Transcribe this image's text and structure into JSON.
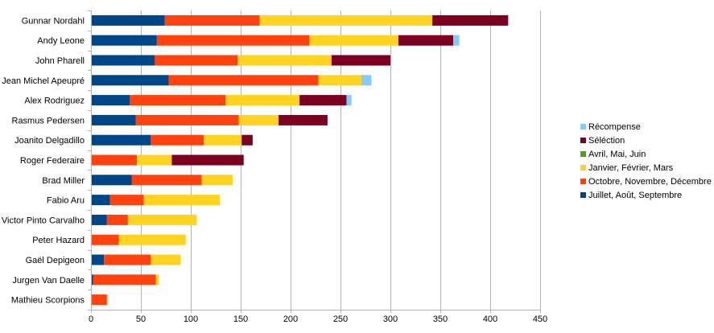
{
  "chart_data": {
    "type": "bar",
    "orientation": "horizontal",
    "stacked": true,
    "title": "",
    "xlabel": "",
    "ylabel": "",
    "xlim": [
      0,
      450
    ],
    "x_ticks": [
      0,
      50,
      100,
      150,
      200,
      250,
      300,
      350,
      400,
      450
    ],
    "grid": "vertical",
    "legend_position": "right",
    "categories": [
      "Gunnar Nordahl",
      "Andy Leone",
      "John Pharell",
      "Jean Michel Apeupré",
      "Alex Rodriguez",
      "Rasmus Pedersen",
      "Joanito Delgadillo",
      "Roger Federaire",
      "Brad Miller",
      "Fabio Aru",
      "Victor Pinto Carvalho",
      "Peter Hazard",
      "Gaël Depigeon",
      "Jurgen Van Daelle",
      "Mathieu Scorpions"
    ],
    "series": [
      {
        "name": "Juillet, Août, Septembre",
        "color": "#004586",
        "values": [
          74,
          66,
          64,
          78,
          39,
          45,
          60,
          0,
          41,
          19,
          16,
          0,
          13,
          2,
          0
        ]
      },
      {
        "name": "Octobre, Novembre, Décembre",
        "color": "#ff420e",
        "values": [
          95,
          153,
          83,
          150,
          96,
          103,
          53,
          46,
          70,
          34,
          21,
          28,
          47,
          63,
          16
        ]
      },
      {
        "name": "Janvier, Février, Mars",
        "color": "#ffd320",
        "values": [
          173,
          89,
          94,
          43,
          74,
          40,
          38,
          35,
          31,
          76,
          69,
          67,
          30,
          3,
          1
        ]
      },
      {
        "name": "Avril, Mai, Juin",
        "color": "#579d1c",
        "values": [
          0,
          0,
          0,
          0,
          0,
          0,
          0,
          0,
          0,
          0,
          0,
          0,
          0,
          0,
          0
        ]
      },
      {
        "name": "Séléction",
        "color": "#7e0021",
        "values": [
          76,
          55,
          59,
          0,
          47,
          49,
          11,
          72,
          0,
          0,
          0,
          0,
          0,
          0,
          0
        ]
      },
      {
        "name": "Récompense",
        "color": "#83caff",
        "values": [
          0,
          6,
          0,
          10,
          5,
          0,
          0,
          0,
          0,
          0,
          0,
          0,
          0,
          0,
          0
        ]
      }
    ],
    "legend_order": [
      "Récompense",
      "Séléction",
      "Avril, Mai, Juin",
      "Janvier, Février, Mars",
      "Octobre, Novembre, Décembre",
      "Juillet, Août, Septembre"
    ]
  }
}
